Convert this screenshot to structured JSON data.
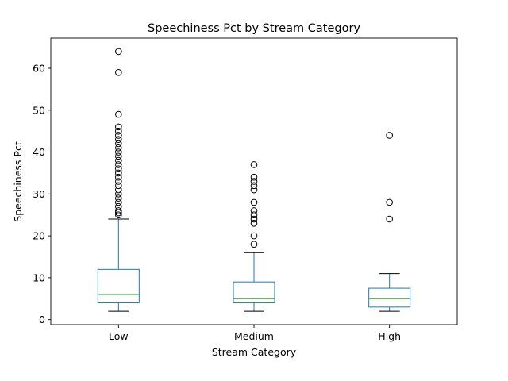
{
  "chart_data": {
    "type": "box",
    "title": "Speechiness Pct by Stream Category",
    "xlabel": "Stream Category",
    "ylabel": "Speechiness Pct",
    "ylim": [
      -1.2,
      67.2
    ],
    "yticks": [
      0,
      10,
      20,
      30,
      40,
      50,
      60
    ],
    "categories": [
      "Low",
      "Medium",
      "High"
    ],
    "grid": false,
    "colors": {
      "box": "#1f77b4",
      "median": "#2ca02c",
      "whisker": "#1f77b4",
      "cap": "#000000",
      "flier": "#000000"
    },
    "series": [
      {
        "category": "Low",
        "whisker_low": 2,
        "q1": 4,
        "median": 6,
        "q3": 12,
        "whisker_high": 24,
        "outliers": [
          25,
          25.5,
          26,
          27,
          28,
          29,
          30,
          31,
          32,
          33,
          34,
          35,
          36,
          37,
          38,
          39,
          40,
          41,
          42,
          43,
          44,
          45,
          46,
          49,
          59,
          64
        ]
      },
      {
        "category": "Medium",
        "whisker_low": 2,
        "q1": 4,
        "median": 5,
        "q3": 9,
        "whisker_high": 16,
        "outliers": [
          18,
          20,
          23,
          24,
          25,
          26,
          28,
          31,
          32,
          33,
          34,
          37
        ]
      },
      {
        "category": "High",
        "whisker_low": 2,
        "q1": 3,
        "median": 5,
        "q3": 7.5,
        "whisker_high": 11,
        "outliers": [
          24,
          28,
          44
        ]
      }
    ]
  }
}
